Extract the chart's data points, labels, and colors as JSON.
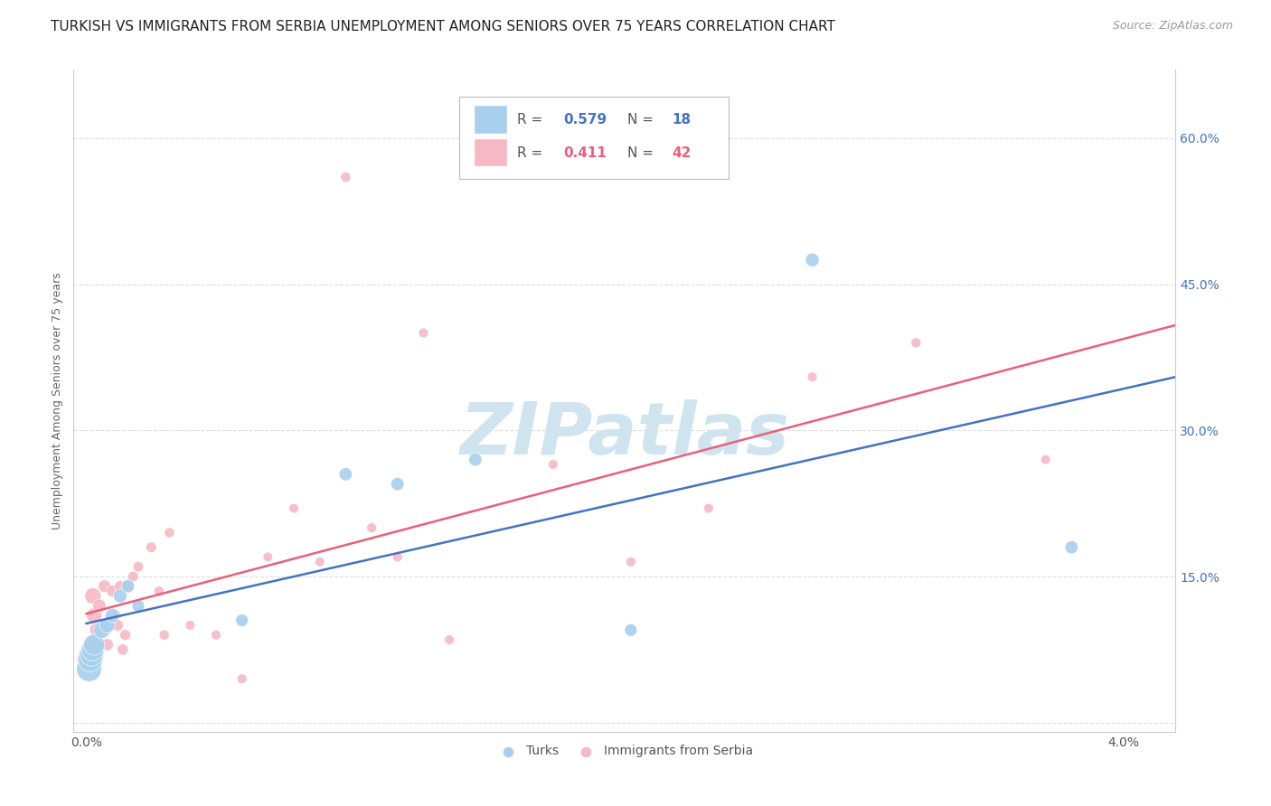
{
  "title": "TURKISH VS IMMIGRANTS FROM SERBIA UNEMPLOYMENT AMONG SENIORS OVER 75 YEARS CORRELATION CHART",
  "source": "Source: ZipAtlas.com",
  "ylabel": "Unemployment Among Seniors over 75 years",
  "ytick_vals": [
    0.0,
    0.15,
    0.3,
    0.45,
    0.6
  ],
  "ytick_labels": [
    "",
    "15.0%",
    "30.0%",
    "45.0%",
    "60.0%"
  ],
  "ylim": [
    -0.01,
    0.67
  ],
  "xlim": [
    -0.0005,
    0.042
  ],
  "turks_R": "0.579",
  "turks_N": "18",
  "serbia_R": "0.411",
  "serbia_N": "42",
  "turks_color": "#A8D0EE",
  "serbia_color": "#F5B8C4",
  "turks_line_color": "#4472C4",
  "serbia_line_color": "#E8607A",
  "turks_x": [
    0.0001,
    0.00015,
    0.0002,
    0.00025,
    0.0003,
    0.0006,
    0.0008,
    0.001,
    0.0013,
    0.0016,
    0.002,
    0.006,
    0.01,
    0.012,
    0.015,
    0.021,
    0.028,
    0.038
  ],
  "turks_y": [
    0.055,
    0.065,
    0.07,
    0.075,
    0.08,
    0.095,
    0.1,
    0.11,
    0.13,
    0.14,
    0.12,
    0.105,
    0.255,
    0.245,
    0.27,
    0.095,
    0.475,
    0.18
  ],
  "serbia_x": [
    5e-05,
    0.0001,
    0.00015,
    0.0002,
    0.00025,
    0.0003,
    0.0004,
    0.0005,
    0.0006,
    0.0007,
    0.0008,
    0.0009,
    0.001,
    0.0011,
    0.0012,
    0.0013,
    0.0014,
    0.0015,
    0.0016,
    0.0018,
    0.002,
    0.0025,
    0.0028,
    0.003,
    0.0032,
    0.004,
    0.005,
    0.006,
    0.007,
    0.008,
    0.009,
    0.01,
    0.011,
    0.012,
    0.013,
    0.014,
    0.018,
    0.021,
    0.024,
    0.028,
    0.032,
    0.037
  ],
  "serbia_y": [
    0.065,
    0.07,
    0.075,
    0.08,
    0.13,
    0.11,
    0.095,
    0.12,
    0.095,
    0.14,
    0.08,
    0.1,
    0.135,
    0.11,
    0.1,
    0.14,
    0.075,
    0.09,
    0.14,
    0.15,
    0.16,
    0.18,
    0.135,
    0.09,
    0.195,
    0.1,
    0.09,
    0.045,
    0.17,
    0.22,
    0.165,
    0.56,
    0.2,
    0.17,
    0.4,
    0.085,
    0.265,
    0.165,
    0.22,
    0.355,
    0.39,
    0.27
  ],
  "turks_sizes": [
    400,
    380,
    350,
    320,
    280,
    180,
    150,
    130,
    120,
    110,
    100,
    100,
    110,
    110,
    110,
    100,
    120,
    110
  ],
  "serbia_sizes": [
    300,
    280,
    240,
    200,
    170,
    150,
    130,
    110,
    100,
    100,
    95,
    90,
    90,
    85,
    85,
    80,
    80,
    75,
    75,
    70,
    70,
    70,
    65,
    65,
    65,
    60,
    60,
    60,
    60,
    60,
    60,
    65,
    60,
    60,
    60,
    60,
    60,
    60,
    60,
    60,
    65,
    60
  ],
  "watermark": "ZIPatlas",
  "watermark_color": "#D0E4F0",
  "background_color": "#FFFFFF",
  "grid_color": "#DDDDDD",
  "title_fontsize": 11,
  "source_fontsize": 9,
  "axis_label_fontsize": 9,
  "tick_fontsize": 10
}
